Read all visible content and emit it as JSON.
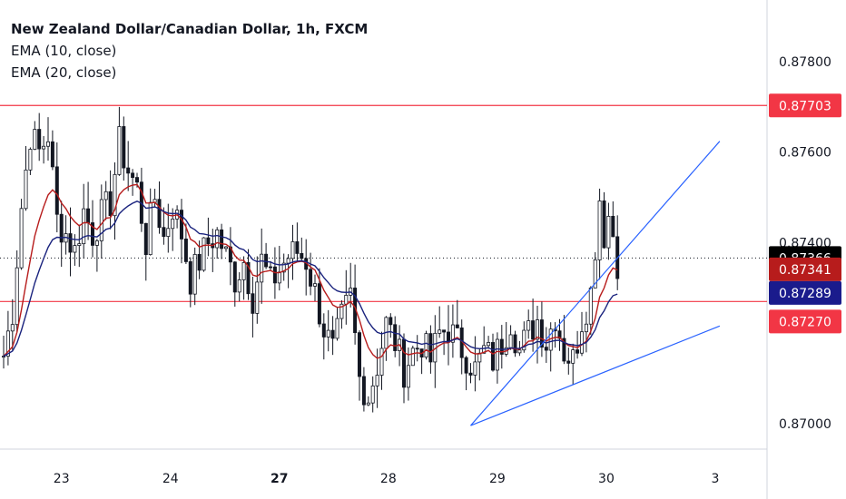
{
  "legend": {
    "title": "New Zealand Dollar/Canadian Dollar, 1h, FXCM",
    "ema_fast": "EMA (10, close)",
    "ema_slow": "EMA (20, close)"
  },
  "colors": {
    "background": "#ffffff",
    "axis_line": "#d1d4dc",
    "candle": "#131722",
    "ema_fast": "#b71c1c",
    "ema_slow": "#1a237e",
    "horizontal_line": "#f23645",
    "trend_line": "#2962ff",
    "last_price_tag": "#000000",
    "ema_fast_tag": "#b71c1c",
    "ema_slow_tag": "#1a1b8c",
    "level_tag": "#f23645"
  },
  "chart_data": {
    "type": "candlestick",
    "y_range": [
      0.86944,
      0.87936
    ],
    "y_ticks": [
      "0.87800",
      "0.87600",
      "0.87400",
      "0.87000"
    ],
    "x_ticks": [
      {
        "label": "23",
        "bold": false
      },
      {
        "label": "24",
        "bold": false
      },
      {
        "label": "27",
        "bold": true
      },
      {
        "label": "28",
        "bold": false
      },
      {
        "label": "29",
        "bold": false
      },
      {
        "label": "30",
        "bold": false
      },
      {
        "label": "3",
        "bold": false
      }
    ],
    "day_index": {
      "23": 13,
      "24": 37.5,
      "27": 62,
      "28": 86.5,
      "29": 111,
      "30": 135.5,
      "3": 160
    },
    "last_price": 0.87366,
    "ema_10_last": 0.87341,
    "ema_20_last": 0.87289,
    "horizontal_levels": [
      0.87703,
      0.8727
    ],
    "trend_lines": [
      {
        "from": [
          105,
          0.86996
        ],
        "to": [
          161,
          0.87624
        ]
      },
      {
        "from": [
          105,
          0.86996
        ],
        "to": [
          161,
          0.87216
        ]
      }
    ],
    "price_labels": [
      {
        "text": "0.87703",
        "value": 0.87703,
        "role": "level"
      },
      {
        "text": "0.87366",
        "value": 0.87366,
        "role": "last"
      },
      {
        "text": "0.87341",
        "value": 0.87341,
        "role": "ema_fast"
      },
      {
        "text": "0.87289",
        "value": 0.87289,
        "role": "ema_slow"
      },
      {
        "text": "0.87270",
        "value": 0.8727,
        "role": "level"
      }
    ],
    "candle_keypoints": [
      [
        0,
        0.8715
      ],
      [
        2,
        0.8725
      ],
      [
        4,
        0.8748
      ],
      [
        6,
        0.8764
      ],
      [
        8,
        0.876
      ],
      [
        10,
        0.8764
      ],
      [
        12,
        0.8745
      ],
      [
        14,
        0.8742
      ],
      [
        16,
        0.8738
      ],
      [
        18,
        0.8747
      ],
      [
        20,
        0.8742
      ],
      [
        22,
        0.8746
      ],
      [
        24,
        0.8749
      ],
      [
        26,
        0.8762
      ],
      [
        28,
        0.8756
      ],
      [
        30,
        0.8752
      ],
      [
        32,
        0.874
      ],
      [
        34,
        0.875
      ],
      [
        36,
        0.8741
      ],
      [
        38,
        0.8748
      ],
      [
        40,
        0.8742
      ],
      [
        42,
        0.8732
      ],
      [
        44,
        0.8736
      ],
      [
        46,
        0.874
      ],
      [
        48,
        0.8742
      ],
      [
        50,
        0.8737
      ],
      [
        52,
        0.8732
      ],
      [
        54,
        0.8736
      ],
      [
        56,
        0.8728
      ],
      [
        58,
        0.8736
      ],
      [
        60,
        0.8731
      ],
      [
        62,
        0.8734
      ],
      [
        64,
        0.8737
      ],
      [
        66,
        0.8738
      ],
      [
        68,
        0.8736
      ],
      [
        70,
        0.8729
      ],
      [
        72,
        0.8721
      ],
      [
        74,
        0.8716
      ],
      [
        76,
        0.8723
      ],
      [
        78,
        0.8728
      ],
      [
        80,
        0.871
      ],
      [
        82,
        0.8706
      ],
      [
        84,
        0.8713
      ],
      [
        86,
        0.8722
      ],
      [
        88,
        0.8718
      ],
      [
        90,
        0.8712
      ],
      [
        92,
        0.8716
      ],
      [
        94,
        0.8718
      ],
      [
        96,
        0.8714
      ],
      [
        98,
        0.872
      ],
      [
        100,
        0.8721
      ],
      [
        102,
        0.8718
      ],
      [
        104,
        0.8715
      ],
      [
        106,
        0.8712
      ],
      [
        108,
        0.8716
      ],
      [
        110,
        0.8714
      ],
      [
        112,
        0.8718
      ],
      [
        114,
        0.8723
      ],
      [
        116,
        0.8716
      ],
      [
        118,
        0.872
      ],
      [
        120,
        0.8723
      ],
      [
        122,
        0.8718
      ],
      [
        124,
        0.8724
      ],
      [
        126,
        0.8716
      ],
      [
        128,
        0.8714
      ],
      [
        130,
        0.8723
      ],
      [
        132,
        0.8729
      ],
      [
        134,
        0.875
      ],
      [
        135,
        0.8742
      ],
      [
        136,
        0.8746
      ],
      [
        137,
        0.8742
      ],
      [
        138,
        0.8736
      ]
    ]
  }
}
